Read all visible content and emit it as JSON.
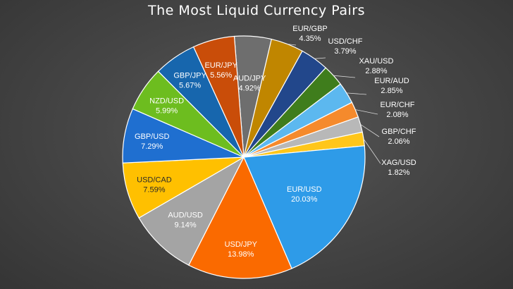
{
  "chart_data": {
    "type": "pie",
    "title": "The Most Liquid Currency Pairs",
    "legend": "none",
    "start_angle_deg": -4.5,
    "direction": "clockwise",
    "slices": [
      {
        "name": "AUD/JPY",
        "value": 4.92,
        "label": "4.92%",
        "color": "#6e6e6e",
        "label_color": "#ffffff",
        "label_pos": "inside"
      },
      {
        "name": "EUR/GBP",
        "value": 4.35,
        "label": "4.35%",
        "color": "#c08600",
        "label_color": "#ffffff",
        "label_pos": "outside"
      },
      {
        "name": "USD/CHF",
        "value": 3.79,
        "label": "3.79%",
        "color": "#22478b",
        "label_color": "#ffffff",
        "label_pos": "outside"
      },
      {
        "name": "XAU/USD",
        "value": 2.88,
        "label": "2.88%",
        "color": "#3f7d1c",
        "label_color": "#ffffff",
        "label_pos": "outside"
      },
      {
        "name": "EUR/AUD",
        "value": 2.85,
        "label": "2.85%",
        "color": "#5cb8ef",
        "label_color": "#ffffff",
        "label_pos": "outside"
      },
      {
        "name": "EUR/CHF",
        "value": 2.08,
        "label": "2.08%",
        "color": "#f58a2c",
        "label_color": "#ffffff",
        "label_pos": "outside"
      },
      {
        "name": "GBP/CHF",
        "value": 2.06,
        "label": "2.06%",
        "color": "#b8b8b8",
        "label_color": "#ffffff",
        "label_pos": "outside"
      },
      {
        "name": "XAG/USD",
        "value": 1.82,
        "label": "1.82%",
        "color": "#ffc61a",
        "label_color": "#ffffff",
        "label_pos": "outside"
      },
      {
        "name": "EUR/USD",
        "value": 20.03,
        "label": "20.03%",
        "color": "#2e9be8",
        "label_color": "#ffffff",
        "label_pos": "inside"
      },
      {
        "name": "USD/JPY",
        "value": 13.98,
        "label": "13.98%",
        "color": "#fa6a00",
        "label_color": "#ffffff",
        "label_pos": "inside"
      },
      {
        "name": "AUD/USD",
        "value": 9.14,
        "label": "9.14%",
        "color": "#a4a4a4",
        "label_color": "#ffffff",
        "label_pos": "inside"
      },
      {
        "name": "USD/CAD",
        "value": 7.59,
        "label": "7.59%",
        "color": "#ffc000",
        "label_color": "#2a2a2a",
        "label_pos": "inside"
      },
      {
        "name": "GBP/USD",
        "value": 7.29,
        "label": "7.29%",
        "color": "#1f6fd0",
        "label_color": "#ffffff",
        "label_pos": "inside"
      },
      {
        "name": "NZD/USD",
        "value": 5.99,
        "label": "5.99%",
        "color": "#6dbd1f",
        "label_color": "#ffffff",
        "label_pos": "inside"
      },
      {
        "name": "GBP/JPY",
        "value": 5.67,
        "label": "5.67%",
        "color": "#1766ad",
        "label_color": "#ffffff",
        "label_pos": "inside"
      },
      {
        "name": "EUR/JPY",
        "value": 5.56,
        "label": "5.56%",
        "color": "#c94d09",
        "label_color": "#ffffff",
        "label_pos": "inside"
      }
    ]
  }
}
